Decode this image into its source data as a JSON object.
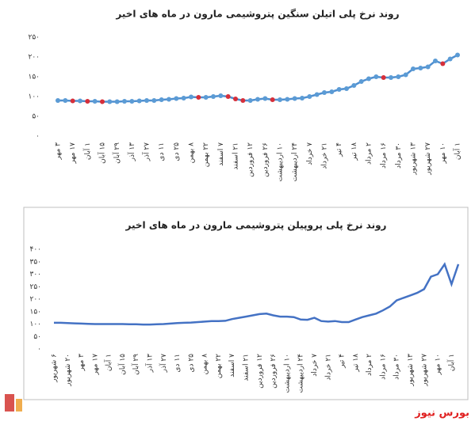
{
  "chart_data": [
    {
      "type": "line",
      "title": "روند نرخ پلی اتیلن سنگین پتروشیمی مارون در ماه های اخیر",
      "categories": [
        "۳ مهر",
        null,
        "۱۷ مهر",
        null,
        "۱ آبان",
        null,
        "۱۵ آبان",
        null,
        "۲۹ آبان",
        null,
        "۱۳ آذر",
        null,
        "۲۷ آذر",
        null,
        "۱۱ دی",
        null,
        "۲۵ دی",
        null,
        "۸ بهمن",
        null,
        "۲۲ بهمن",
        null,
        "۷ اسفند",
        null,
        "۲۱ اسفند",
        null,
        "۱۲ فروردین",
        null,
        "۲۶ فروردین",
        null,
        "۱۰ اردیبهشت",
        null,
        "۲۴ اردیبهشت",
        null,
        "۷ خرداد",
        null,
        "۲۱ خرداد",
        null,
        "۴ تیر",
        null,
        "۱۸ تیر",
        null,
        "۲ مرداد",
        null,
        "۱۶ مرداد",
        null,
        "۳۰ مرداد",
        null,
        "۱۳ شهریور",
        null,
        "۲۷ شهریور",
        null,
        "۱۰ مهر",
        null,
        "۱ آبان"
      ],
      "values": [
        90,
        90,
        89,
        89,
        88,
        88,
        87,
        87,
        87,
        88,
        88,
        89,
        90,
        90,
        92,
        93,
        95,
        96,
        99,
        98,
        98,
        100,
        102,
        100,
        94,
        90,
        90,
        93,
        95,
        92,
        92,
        93,
        95,
        96,
        100,
        105,
        110,
        112,
        118,
        120,
        128,
        138,
        145,
        150,
        148,
        148,
        150,
        155,
        170,
        172,
        175,
        190,
        183,
        195,
        205
      ],
      "color": "#5b9bd5",
      "line_color": "#4f8fd0",
      "decrease_color": "#d62f3a",
      "markers": true,
      "ylim": [
        0,
        250
      ],
      "yticks": [
        {
          "value": 0,
          "label": "۰"
        },
        {
          "value": 50,
          "label": "۵۰"
        },
        {
          "value": 100,
          "label": "۱۰۰"
        },
        {
          "value": 150,
          "label": "۱۵۰"
        },
        {
          "value": 200,
          "label": "۲۰۰"
        },
        {
          "value": 250,
          "label": "۲۵۰"
        }
      ],
      "grid": false
    },
    {
      "type": "line",
      "title": "روند نرخ پلی پروپیلن پتروشیمی مارون در ماه های اخیر",
      "categories": [
        "۶ شهریور",
        null,
        "۲۰ شهریور",
        null,
        "۳ مهر",
        null,
        "۱۷ مهر",
        null,
        "۱ آبان",
        null,
        "۱۵ آبان",
        null,
        "۲۹ آبان",
        null,
        "۱۳ آذر",
        null,
        "۲۷ آذر",
        null,
        "۱۱ دی",
        null,
        "۲۵ دی",
        null,
        "۸ بهمن",
        null,
        "۲۲ بهمن",
        null,
        "۷ اسفند",
        null,
        "۲۱ اسفند",
        null,
        "۱۲ فروردین",
        null,
        "۲۶ فروردین",
        null,
        "۱۰ اردیبهشت",
        null,
        "۲۴ اردیبهشت",
        null,
        "۷ خرداد",
        null,
        "۲۱ خرداد",
        null,
        "۴ تیر",
        null,
        "۱۸ تیر",
        null,
        "۲ مرداد",
        null,
        "۱۶ مرداد",
        null,
        "۳۰ مرداد",
        null,
        "۱۳ شهریور",
        null,
        "۲۷ شهریور",
        null,
        "۱۰ مهر",
        null,
        "۱ آبان",
        null
      ],
      "values": [
        105,
        105,
        104,
        103,
        102,
        101,
        100,
        100,
        100,
        100,
        100,
        99,
        99,
        98,
        98,
        99,
        100,
        102,
        104,
        105,
        106,
        108,
        110,
        112,
        112,
        113,
        120,
        125,
        130,
        135,
        140,
        142,
        135,
        130,
        130,
        128,
        118,
        117,
        125,
        112,
        110,
        112,
        108,
        108,
        118,
        128,
        135,
        142,
        155,
        170,
        195,
        205,
        215,
        225,
        240,
        290,
        300,
        340,
        260,
        340
      ],
      "color": "#4472c4",
      "line_color": "#4472c4",
      "markers": false,
      "ylim": [
        0,
        400
      ],
      "yticks": [
        {
          "value": 0,
          "label": "۰"
        },
        {
          "value": 50,
          "label": "۵۰"
        },
        {
          "value": 100,
          "label": "۱۰۰"
        },
        {
          "value": 150,
          "label": "۱۵۰"
        },
        {
          "value": 200,
          "label": "۲۰۰"
        },
        {
          "value": 250,
          "label": "۲۵۰"
        },
        {
          "value": 300,
          "label": "۳۰۰"
        },
        {
          "value": 350,
          "label": "۳۵۰"
        },
        {
          "value": 400,
          "label": "۴۰۰"
        }
      ],
      "grid": false
    }
  ],
  "footer": "بورس نیوز"
}
